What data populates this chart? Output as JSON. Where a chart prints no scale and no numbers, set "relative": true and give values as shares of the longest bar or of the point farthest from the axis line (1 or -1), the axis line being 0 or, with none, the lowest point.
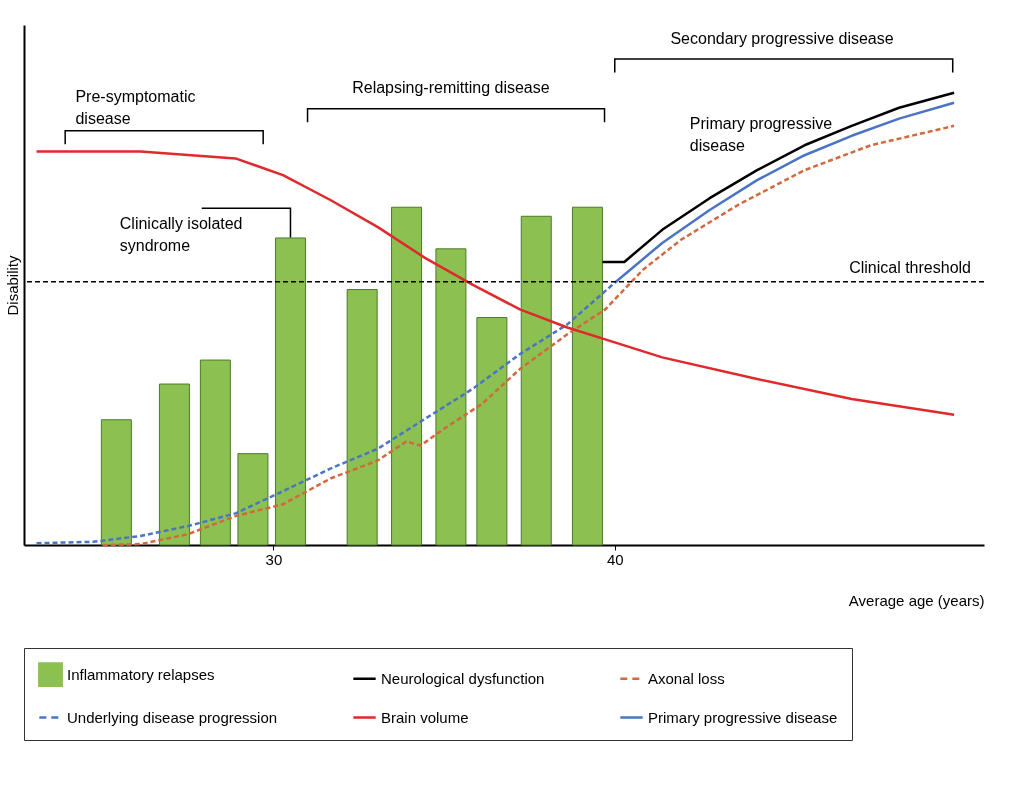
{
  "chart_data": {
    "type": "bar",
    "relative": true,
    "xlabel": "Average age (years)",
    "ylabel": "Disability",
    "xlim": [
      22.84,
      50.67
    ],
    "xticks": [
      30,
      40
    ],
    "grid": false,
    "legend": "bottom",
    "series": [
      {
        "name": "Inflammatory relapses",
        "color": "#8cc152",
        "x": [
          25.4,
          27.1,
          28.3,
          29.4,
          30.5,
          32.6,
          33.9,
          35.2,
          36.4,
          37.7,
          39.2
        ],
        "values": [
          0.277,
          0.356,
          0.409,
          0.202,
          0.679,
          0.565,
          0.747,
          0.655,
          0.503,
          0.727,
          0.747
        ]
      },
      {
        "name": "Neurological dysfunction",
        "type": "line",
        "color": "#000000",
        "line_style": "solid",
        "x": [
          39.64,
          40.28,
          41.39,
          42.78,
          44.17,
          45.56,
          46.94,
          48.33,
          49.94
        ],
        "values": [
          0.626,
          0.626,
          0.697,
          0.767,
          0.829,
          0.884,
          0.927,
          0.967,
          1
        ]
      },
      {
        "name": "Axonal loss",
        "type": "line",
        "color": "#d2693c",
        "line_style": "dashed",
        "x": [
          25,
          26.11,
          27.5,
          28.89,
          30.28,
          31.67,
          33.06,
          33.89,
          34.31,
          35,
          36.11,
          37.22,
          38.61,
          39.72,
          40.83,
          41.94,
          43.61,
          45.56,
          47.5,
          49.94
        ],
        "values": [
          0,
          0.002,
          0.024,
          0.064,
          0.09,
          0.147,
          0.187,
          0.229,
          0.22,
          0.257,
          0.312,
          0.389,
          0.466,
          0.521,
          0.609,
          0.675,
          0.752,
          0.829,
          0.884,
          0.927
        ]
      },
      {
        "name": "Underlying disease progression",
        "type": "line",
        "color": "#4a74c4",
        "line_style": "dashed",
        "x": [
          23.06,
          24.72,
          26.11,
          27.5,
          28.89,
          30.28,
          31.67,
          33.06,
          34.44,
          35.83,
          37.22,
          38.61,
          40
        ],
        "values": [
          0.004,
          0.007,
          0.02,
          0.042,
          0.07,
          0.119,
          0.169,
          0.213,
          0.279,
          0.345,
          0.422,
          0.488,
          0.58
        ]
      },
      {
        "name": "Brain volume",
        "type": "line",
        "color": "#e0292b",
        "line_style": "solid",
        "x": [
          23.06,
          26.11,
          28.89,
          30.28,
          31.67,
          33.06,
          34.44,
          35.83,
          37.22,
          38.61,
          40,
          41.39,
          44.17,
          46.94,
          49.94
        ],
        "values": [
          0.87,
          0.87,
          0.855,
          0.818,
          0.763,
          0.703,
          0.635,
          0.576,
          0.521,
          0.481,
          0.448,
          0.415,
          0.367,
          0.323,
          0.288
        ]
      },
      {
        "name": "Primary progressive disease",
        "type": "line",
        "color": "#4a74c4",
        "line_style": "solid",
        "x": [
          40,
          41.39,
          42.78,
          44.17,
          45.56,
          46.94,
          48.33,
          49.94
        ],
        "values": [
          0.58,
          0.668,
          0.741,
          0.807,
          0.862,
          0.905,
          0.943,
          0.978
        ]
      }
    ],
    "ref_lines": [
      {
        "axis": "y",
        "value": 0.582,
        "label": "Clinical threshold",
        "color": "#000000",
        "line_style": "dashed"
      }
    ],
    "annotations": [
      "Pre-symptomatic disease",
      "Relapsing-remitting disease",
      "Secondary progressive disease",
      "Primary progressive disease",
      "Clinically isolated syndrome"
    ]
  }
}
